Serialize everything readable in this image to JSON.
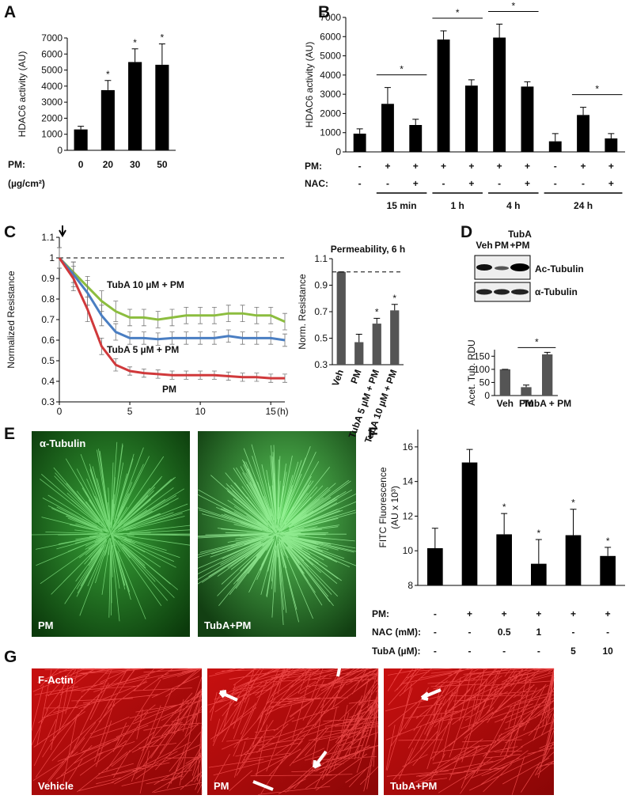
{
  "panel_labels": [
    "A",
    "B",
    "C",
    "D",
    "E",
    "F",
    "G"
  ],
  "chart_data": [
    {
      "type": "bar",
      "ylabel": "HDAC6 activity (AU)",
      "color": "#000000",
      "categories": [
        "0",
        "20",
        "30",
        "50"
      ],
      "values": [
        1300,
        3750,
        5500,
        5330
      ],
      "errors": [
        200,
        600,
        820,
        1300
      ],
      "significance": [
        null,
        "*",
        "*",
        "*"
      ],
      "x_row_label": "PM:",
      "x_unit": "(µg/cm²)",
      "ylim": [
        0,
        7000
      ],
      "yticks": [
        0,
        1000,
        2000,
        3000,
        4000,
        5000,
        6000,
        7000
      ]
    },
    {
      "type": "bar",
      "ylabel": "HDAC6 activity (AU)",
      "color": "#000000",
      "values": [
        950,
        2500,
        1400,
        5850,
        3450,
        5950,
        3400,
        550,
        1920,
        700
      ],
      "errors": [
        250,
        850,
        300,
        450,
        300,
        700,
        250,
        400,
        400,
        250
      ],
      "rows": [
        {
          "label": "PM:",
          "values": [
            "-",
            "+",
            "+",
            "+",
            "+",
            "+",
            "+",
            "-",
            "+",
            "+"
          ]
        },
        {
          "label": "NAC:",
          "values": [
            "-",
            "-",
            "+",
            "-",
            "+",
            "-",
            "+",
            "-",
            "-",
            "+"
          ]
        }
      ],
      "groups": [
        {
          "label": "15 min",
          "from": 1,
          "to": 2
        },
        {
          "label": "1 h",
          "from": 3,
          "to": 4
        },
        {
          "label": "4 h",
          "from": 5,
          "to": 6
        },
        {
          "label": "24 h",
          "from": 7,
          "to": 9
        }
      ],
      "brackets": [
        {
          "from": 1,
          "to": 2,
          "text": "*"
        },
        {
          "from": 3,
          "to": 4,
          "text": "*"
        },
        {
          "from": 5,
          "to": 6,
          "text": "*"
        },
        {
          "from": 8,
          "to": 9,
          "text": "*"
        }
      ],
      "ylim": [
        0,
        7000
      ],
      "yticks": [
        0,
        1000,
        2000,
        3000,
        4000,
        5000,
        6000,
        7000
      ]
    },
    {
      "type": "line",
      "ylabel": "Normalized Resistance",
      "xlabel": "(h)",
      "x": [
        0,
        1,
        2,
        3,
        4,
        5,
        6,
        7,
        8,
        9,
        10,
        11,
        12,
        13,
        14,
        15,
        16
      ],
      "series": [
        {
          "name": "TubA 10 µM + PM",
          "color": "#8cbd3f",
          "values": [
            1.0,
            0.93,
            0.86,
            0.79,
            0.74,
            0.71,
            0.71,
            0.7,
            0.71,
            0.72,
            0.72,
            0.72,
            0.73,
            0.73,
            0.72,
            0.72,
            0.69
          ],
          "errors": [
            0.05,
            0.05,
            0.05,
            0.05,
            0.05,
            0.04,
            0.04,
            0.04,
            0.04,
            0.04,
            0.04,
            0.04,
            0.04,
            0.04,
            0.04,
            0.04,
            0.04
          ]
        },
        {
          "name": "TubA 5 µM + PM",
          "color": "#4a7ec2",
          "values": [
            1.0,
            0.92,
            0.83,
            0.72,
            0.64,
            0.61,
            0.61,
            0.605,
            0.61,
            0.61,
            0.61,
            0.61,
            0.62,
            0.61,
            0.61,
            0.61,
            0.6
          ],
          "errors": [
            0.05,
            0.06,
            0.06,
            0.05,
            0.04,
            0.03,
            0.03,
            0.03,
            0.03,
            0.03,
            0.03,
            0.03,
            0.03,
            0.03,
            0.03,
            0.03,
            0.03
          ]
        },
        {
          "name": "PM",
          "color": "#d0393b",
          "values": [
            1.0,
            0.9,
            0.75,
            0.57,
            0.48,
            0.45,
            0.44,
            0.435,
            0.43,
            0.43,
            0.43,
            0.43,
            0.425,
            0.42,
            0.42,
            0.415,
            0.415
          ],
          "errors": [
            0.05,
            0.06,
            0.06,
            0.04,
            0.03,
            0.02,
            0.02,
            0.02,
            0.02,
            0.02,
            0.02,
            0.02,
            0.02,
            0.02,
            0.02,
            0.02,
            0.02
          ]
        }
      ],
      "reference_line": 1,
      "xlim": [
        0,
        16
      ],
      "xticks": [
        0,
        5,
        10,
        15
      ],
      "ylim": [
        0.3,
        1.1
      ],
      "yticks": [
        0.3,
        0.4,
        0.5,
        0.6,
        0.7,
        0.8,
        0.9,
        1,
        1.1
      ]
    },
    {
      "type": "bar",
      "title": "Permeability, 6 h",
      "ylabel": "Norm. Resistance",
      "color": "#555555",
      "categories": [
        "Veh",
        "PM",
        "TubA 5 µM + PM",
        "TubA 10 µM + PM"
      ],
      "values": [
        1.0,
        0.47,
        0.61,
        0.71
      ],
      "errors": [
        0,
        0.06,
        0.04,
        0.045
      ],
      "significance": [
        null,
        null,
        "*",
        "*"
      ],
      "reference_line": 1,
      "ylim": [
        0.3,
        1.1
      ],
      "yticks": [
        0.3,
        0.5,
        0.7,
        0.9,
        1.1
      ]
    },
    {
      "type": "bar",
      "ylabel": "Acet. Tub. RDU",
      "color": "#555555",
      "categories": [
        "Veh",
        "PM",
        "TubA + PM"
      ],
      "values": [
        100,
        32,
        157
      ],
      "errors": [
        0,
        8,
        8
      ],
      "brackets": [
        {
          "from": 1,
          "to": 2,
          "text": "*"
        }
      ],
      "ylim": [
        0,
        175
      ],
      "yticks": [
        0,
        50,
        100,
        150
      ]
    },
    {
      "type": "bar",
      "ylabel": [
        "FITC Fluorescence",
        "(AU x 10³)"
      ],
      "color": "#000000",
      "values": [
        10.15,
        15.1,
        10.95,
        9.25,
        10.9,
        9.7
      ],
      "errors": [
        1.15,
        0.75,
        1.2,
        1.4,
        1.5,
        0.5
      ],
      "significance": [
        null,
        null,
        "*",
        "*",
        "*",
        "*"
      ],
      "rows": [
        {
          "label": "PM:",
          "values": [
            "-",
            "+",
            "+",
            "+",
            "+",
            "+"
          ]
        },
        {
          "label": "NAC (mM):",
          "values": [
            "-",
            "-",
            "0.5",
            "1",
            "-",
            "-"
          ]
        },
        {
          "label": "TubA (µM):",
          "values": [
            "-",
            "-",
            "-",
            "-",
            "5",
            "10"
          ]
        }
      ],
      "ylim": [
        8,
        17
      ],
      "yticks": [
        8,
        10,
        12,
        14,
        16
      ]
    }
  ],
  "blot": {
    "lanes": [
      [
        "Veh"
      ],
      [
        "PM"
      ],
      [
        "TubA",
        "+PM"
      ]
    ],
    "bands": [
      "Ac-Tubulin",
      "α-Tubulin"
    ]
  },
  "images_e": {
    "title": "α-Tubulin",
    "panels": [
      "PM",
      "TubA+PM"
    ]
  },
  "images_g": {
    "title": "F-Actin",
    "panels": [
      "Vehicle",
      "PM",
      "TubA+PM"
    ]
  }
}
